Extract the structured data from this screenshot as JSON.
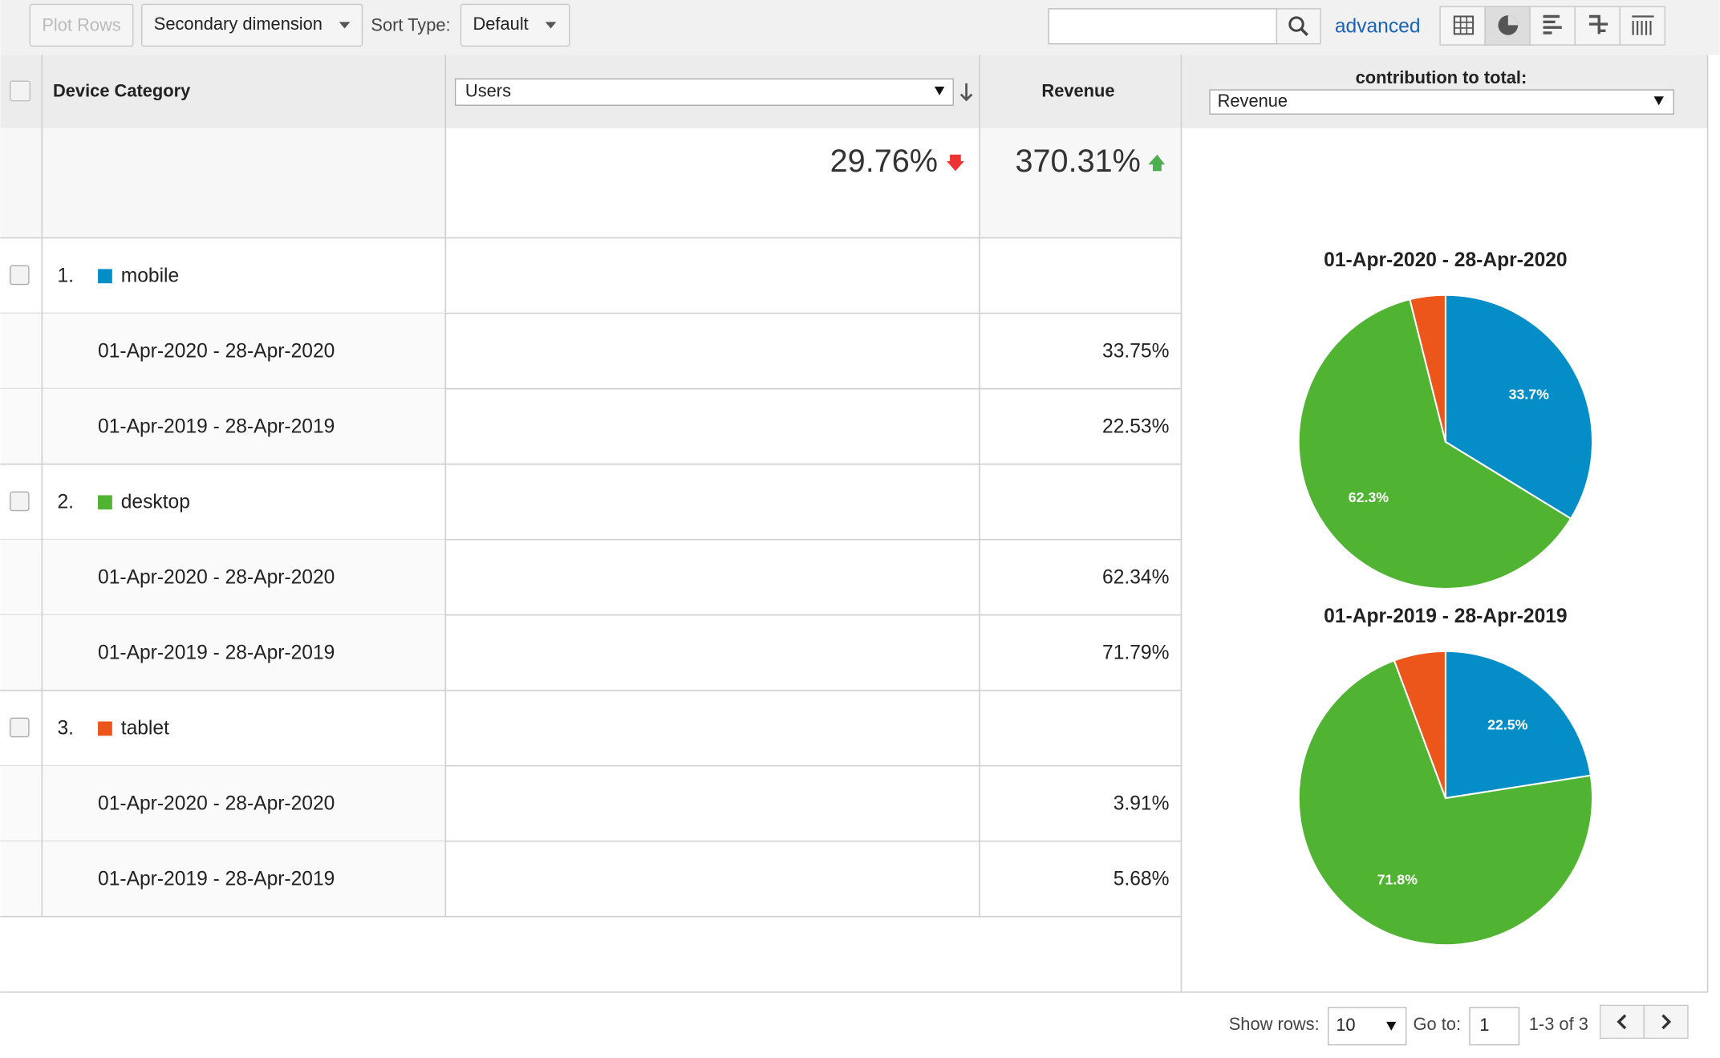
{
  "toolbar": {
    "plot_rows": "Plot Rows",
    "secondary_dimension": "Secondary dimension",
    "sort_type_label": "Sort Type:",
    "sort_type": "Default",
    "advanced": "advanced"
  },
  "table": {
    "headers": {
      "dimension": "Device Category",
      "metric1": "Users",
      "metric2": "Revenue",
      "contribution_label": "contribution to total:",
      "contribution_metric": "Revenue"
    },
    "totals": {
      "users_change": "29.76%",
      "revenue_change": "370.31%"
    },
    "rows": [
      {
        "index": "1.",
        "name": "mobile",
        "color": "#058dc7",
        "periods": [
          {
            "range": "01-Apr-2020 - 28-Apr-2020",
            "revenue": "33.75%"
          },
          {
            "range": "01-Apr-2019 - 28-Apr-2019",
            "revenue": "22.53%"
          }
        ]
      },
      {
        "index": "2.",
        "name": "desktop",
        "color": "#50b432",
        "periods": [
          {
            "range": "01-Apr-2020 - 28-Apr-2020",
            "revenue": "62.34%"
          },
          {
            "range": "01-Apr-2019 - 28-Apr-2019",
            "revenue": "71.79%"
          }
        ]
      },
      {
        "index": "3.",
        "name": "tablet",
        "color": "#ed561b",
        "periods": [
          {
            "range": "01-Apr-2020 - 28-Apr-2020",
            "revenue": "3.91%"
          },
          {
            "range": "01-Apr-2019 - 28-Apr-2019",
            "revenue": "5.68%"
          }
        ]
      }
    ]
  },
  "chart_data": [
    {
      "type": "pie",
      "title": "01-Apr-2020 - 28-Apr-2020",
      "values": [
        33.75,
        62.34,
        3.91
      ],
      "value_labels": [
        "33.7%",
        "62.3%",
        null
      ],
      "colors": [
        "#058dc7",
        "#50b432",
        "#ed561b"
      ]
    },
    {
      "type": "pie",
      "title": "01-Apr-2019 - 28-Apr-2019",
      "values": [
        22.53,
        71.79,
        5.68
      ],
      "value_labels": [
        "22.5%",
        "71.8%",
        null
      ],
      "colors": [
        "#058dc7",
        "#50b432",
        "#ed561b"
      ]
    }
  ],
  "pagination": {
    "show_rows_label": "Show rows:",
    "show_rows": "10",
    "goto_label": "Go to:",
    "goto": "1",
    "range": "1-3 of 3"
  }
}
